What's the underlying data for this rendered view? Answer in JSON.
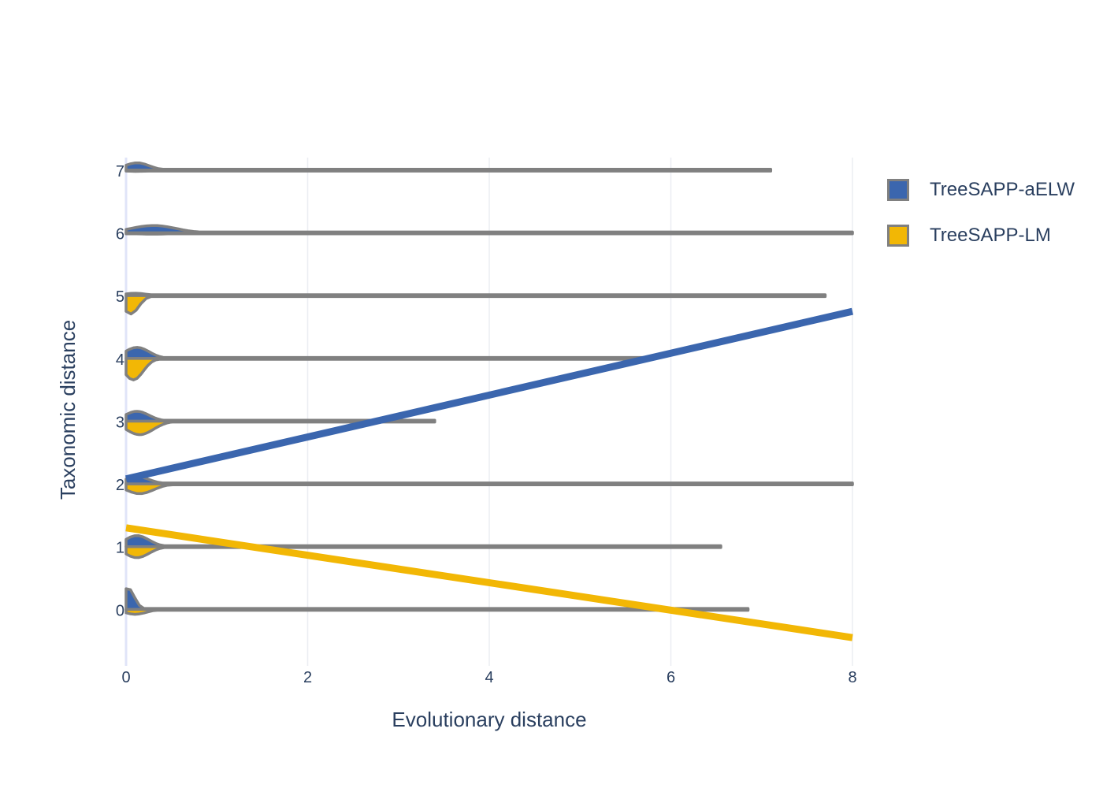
{
  "chart_data": {
    "type": "violin",
    "xlabel": "Evolutionary distance",
    "ylabel": "Taxonomic distance",
    "xlim": [
      0,
      8
    ],
    "ylim": [
      -0.9,
      7.2
    ],
    "x_ticks": [
      "0",
      "2",
      "4",
      "6",
      "8"
    ],
    "y_ticks": [
      "0",
      "1",
      "2",
      "3",
      "4",
      "5",
      "6",
      "7"
    ],
    "grid": true,
    "legend_position": "top-right",
    "series": [
      {
        "name": "TreeSAPP-aELW",
        "color": "#3b66ae",
        "side": "positive",
        "violins": [
          {
            "taxonomic_distance": 0,
            "max_evo_distance": 6.85,
            "peak_density": 0.35,
            "mode": 0.02
          },
          {
            "taxonomic_distance": 1,
            "max_evo_distance": 6.55,
            "peak_density": 0.18,
            "mode": 0.12
          },
          {
            "taxonomic_distance": 2,
            "max_evo_distance": 8.0,
            "peak_density": 0.12,
            "mode": 0.12
          },
          {
            "taxonomic_distance": 3,
            "max_evo_distance": 3.4,
            "peak_density": 0.16,
            "mode": 0.12
          },
          {
            "taxonomic_distance": 4,
            "max_evo_distance": 5.7,
            "peak_density": 0.18,
            "mode": 0.12
          },
          {
            "taxonomic_distance": 5,
            "max_evo_distance": 7.7,
            "peak_density": 0.04,
            "mode": 0.1
          },
          {
            "taxonomic_distance": 6,
            "max_evo_distance": 8.0,
            "peak_density": 0.12,
            "mode": 0.3
          },
          {
            "taxonomic_distance": 7,
            "max_evo_distance": 7.1,
            "peak_density": 0.12,
            "mode": 0.12
          }
        ],
        "trend_line": {
          "x": [
            0,
            8
          ],
          "y": [
            2.08,
            4.75
          ]
        }
      },
      {
        "name": "TreeSAPP-LM",
        "color": "#f2b705",
        "side": "negative",
        "violins": [
          {
            "taxonomic_distance": 0,
            "max_evo_distance": 6.85,
            "peak_density": 0.08,
            "mode": 0.1
          },
          {
            "taxonomic_distance": 1,
            "max_evo_distance": 6.55,
            "peak_density": 0.18,
            "mode": 0.12
          },
          {
            "taxonomic_distance": 2,
            "max_evo_distance": 8.0,
            "peak_density": 0.16,
            "mode": 0.15
          },
          {
            "taxonomic_distance": 3,
            "max_evo_distance": 3.4,
            "peak_density": 0.22,
            "mode": 0.15
          },
          {
            "taxonomic_distance": 4,
            "max_evo_distance": 5.7,
            "peak_density": 0.35,
            "mode": 0.08
          },
          {
            "taxonomic_distance": 5,
            "max_evo_distance": 7.7,
            "peak_density": 0.3,
            "mode": 0.05
          },
          {
            "taxonomic_distance": 6,
            "max_evo_distance": 8.0,
            "peak_density": 0.02,
            "mode": 0.3
          },
          {
            "taxonomic_distance": 7,
            "max_evo_distance": 7.1,
            "peak_density": 0.02,
            "mode": 0.12
          }
        ],
        "trend_line": {
          "x": [
            0,
            8
          ],
          "y": [
            1.3,
            -0.45
          ]
        }
      }
    ]
  },
  "legend": {
    "items": [
      {
        "label": "TreeSAPP-aELW",
        "color": "#3b66ae"
      },
      {
        "label": "TreeSAPP-LM",
        "color": "#f2b705"
      }
    ]
  }
}
